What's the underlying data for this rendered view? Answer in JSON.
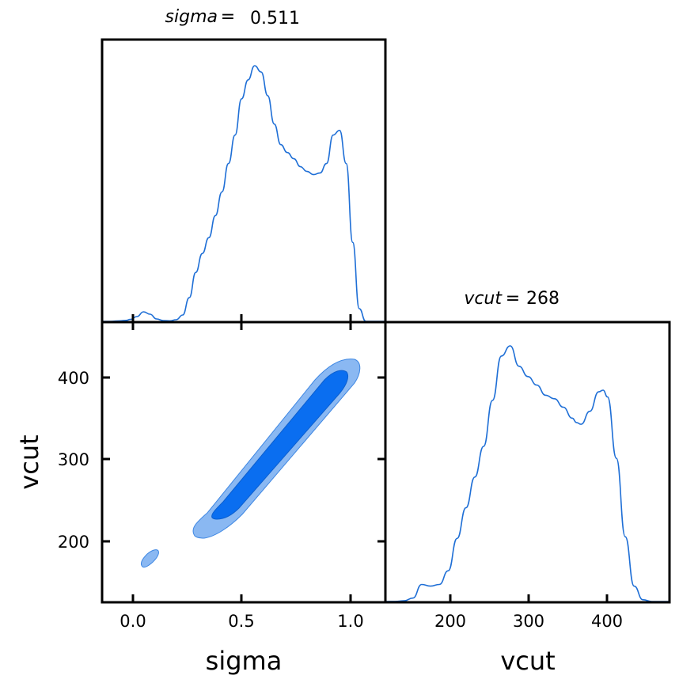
{
  "chart_data": [
    {
      "panel": "sigma-marginal",
      "type": "line",
      "title_param": "sigma",
      "title_eq": "=",
      "title_value": "0.511",
      "xlim": [
        -0.13,
        1.17
      ],
      "color": "#1f6fd6",
      "x": [
        -0.13,
        -0.09,
        -0.05,
        -0.02,
        0.0,
        0.03,
        0.06,
        0.09,
        0.12,
        0.15,
        0.18,
        0.21,
        0.24,
        0.27,
        0.3,
        0.33,
        0.36,
        0.39,
        0.42,
        0.45,
        0.48,
        0.51,
        0.54,
        0.57,
        0.6,
        0.63,
        0.66,
        0.69,
        0.72,
        0.75,
        0.78,
        0.81,
        0.84,
        0.87,
        0.9,
        0.93,
        0.96,
        0.99,
        1.02,
        1.05,
        1.08,
        1.11,
        1.14,
        1.17
      ],
      "y": [
        0.0,
        0.0,
        0.003,
        0.006,
        0.012,
        0.03,
        0.06,
        0.045,
        0.015,
        0.005,
        0.003,
        0.01,
        0.04,
        0.15,
        0.31,
        0.43,
        0.53,
        0.67,
        0.82,
        1.0,
        1.18,
        1.41,
        1.53,
        1.62,
        1.58,
        1.43,
        1.25,
        1.12,
        1.07,
        1.03,
        0.98,
        0.95,
        0.93,
        0.94,
        1.0,
        1.18,
        1.21,
        1.0,
        0.5,
        0.08,
        0.0,
        0.0,
        0.0,
        0.0
      ]
    },
    {
      "panel": "vcut-marginal",
      "type": "line",
      "title_param": "vcut",
      "title_eq": "=",
      "title_value": "268",
      "xlim": [
        139,
        460
      ],
      "color": "#1f6fd6",
      "x": [
        139,
        150,
        160,
        170,
        180,
        190,
        200,
        210,
        220,
        230,
        240,
        250,
        260,
        270,
        280,
        290,
        300,
        310,
        320,
        330,
        340,
        350,
        355,
        360,
        370,
        380,
        385,
        390,
        400,
        410,
        420,
        430,
        440,
        460
      ],
      "y": [
        0.0,
        0.003,
        0.02,
        0.1,
        0.5,
        0.45,
        0.5,
        0.9,
        1.85,
        2.75,
        3.65,
        4.55,
        5.9,
        7.2,
        7.5,
        6.9,
        6.6,
        6.35,
        6.05,
        5.95,
        5.7,
        5.38,
        5.25,
        5.2,
        5.58,
        6.15,
        6.2,
        6.0,
        4.2,
        1.9,
        0.45,
        0.05,
        0.0,
        0.0
      ]
    },
    {
      "panel": "sigma-vcut-joint",
      "type": "contour",
      "xlabel": "sigma",
      "ylabel": "vcut",
      "xlim": [
        -0.13,
        1.17
      ],
      "ylim": [
        126,
        467
      ],
      "xticks": [
        "0.0",
        "0.5",
        "1.0"
      ],
      "yticks": [
        "200",
        "300",
        "400"
      ],
      "vcut_xticks": [
        "200",
        "300",
        "400"
      ],
      "color_inner": "#0a6ef0",
      "color_outer": "#8ab8f2",
      "contours": [
        {
          "level": "outer",
          "center": [
            0.66,
            314
          ],
          "sigma_extent": [
            0.3,
            1.03
          ],
          "vcut_extent": [
            207,
            420
          ]
        },
        {
          "level": "inner",
          "center": [
            0.67,
            316
          ],
          "sigma_extent": [
            0.36,
            0.99
          ],
          "vcut_extent": [
            228,
            406
          ]
        },
        {
          "level": "outer",
          "center": [
            0.07,
            180
          ],
          "sigma_extent": [
            0.04,
            0.11
          ],
          "vcut_extent": [
            170,
            188
          ]
        }
      ]
    }
  ]
}
